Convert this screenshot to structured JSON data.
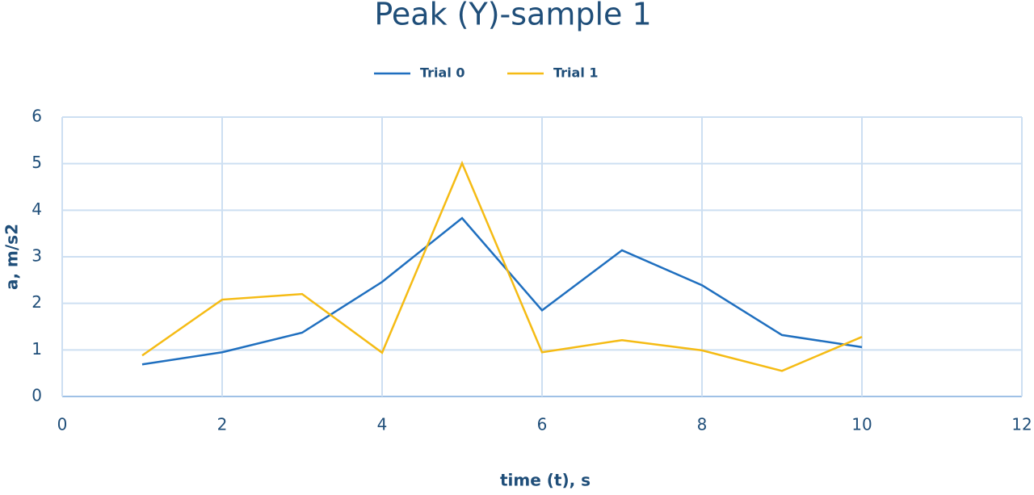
{
  "chart_data": {
    "type": "line",
    "title": "Peak (Y)-sample 1",
    "x_label": "time (t),  s",
    "y_label": "a,  m/s2",
    "x": [
      1,
      2,
      3,
      4,
      5,
      6,
      7,
      8,
      9,
      10
    ],
    "series": [
      {
        "name": "Trial 0",
        "color": "#1f6fbf",
        "values": [
          0.69,
          0.95,
          1.37,
          2.46,
          3.83,
          1.85,
          3.14,
          2.39,
          1.32,
          1.06
        ]
      },
      {
        "name": "Trial 1",
        "color": "#f5bb14",
        "values": [
          0.88,
          2.08,
          2.2,
          0.94,
          5.01,
          0.95,
          1.21,
          0.99,
          0.55,
          1.28
        ]
      }
    ],
    "xlim": [
      0,
      12
    ],
    "xticks": [
      0,
      2,
      4,
      6,
      8,
      10,
      12
    ],
    "ylim": [
      0,
      6
    ],
    "yticks": [
      0,
      1,
      2,
      3,
      4,
      5,
      6
    ],
    "grid": true,
    "legend": "top"
  }
}
